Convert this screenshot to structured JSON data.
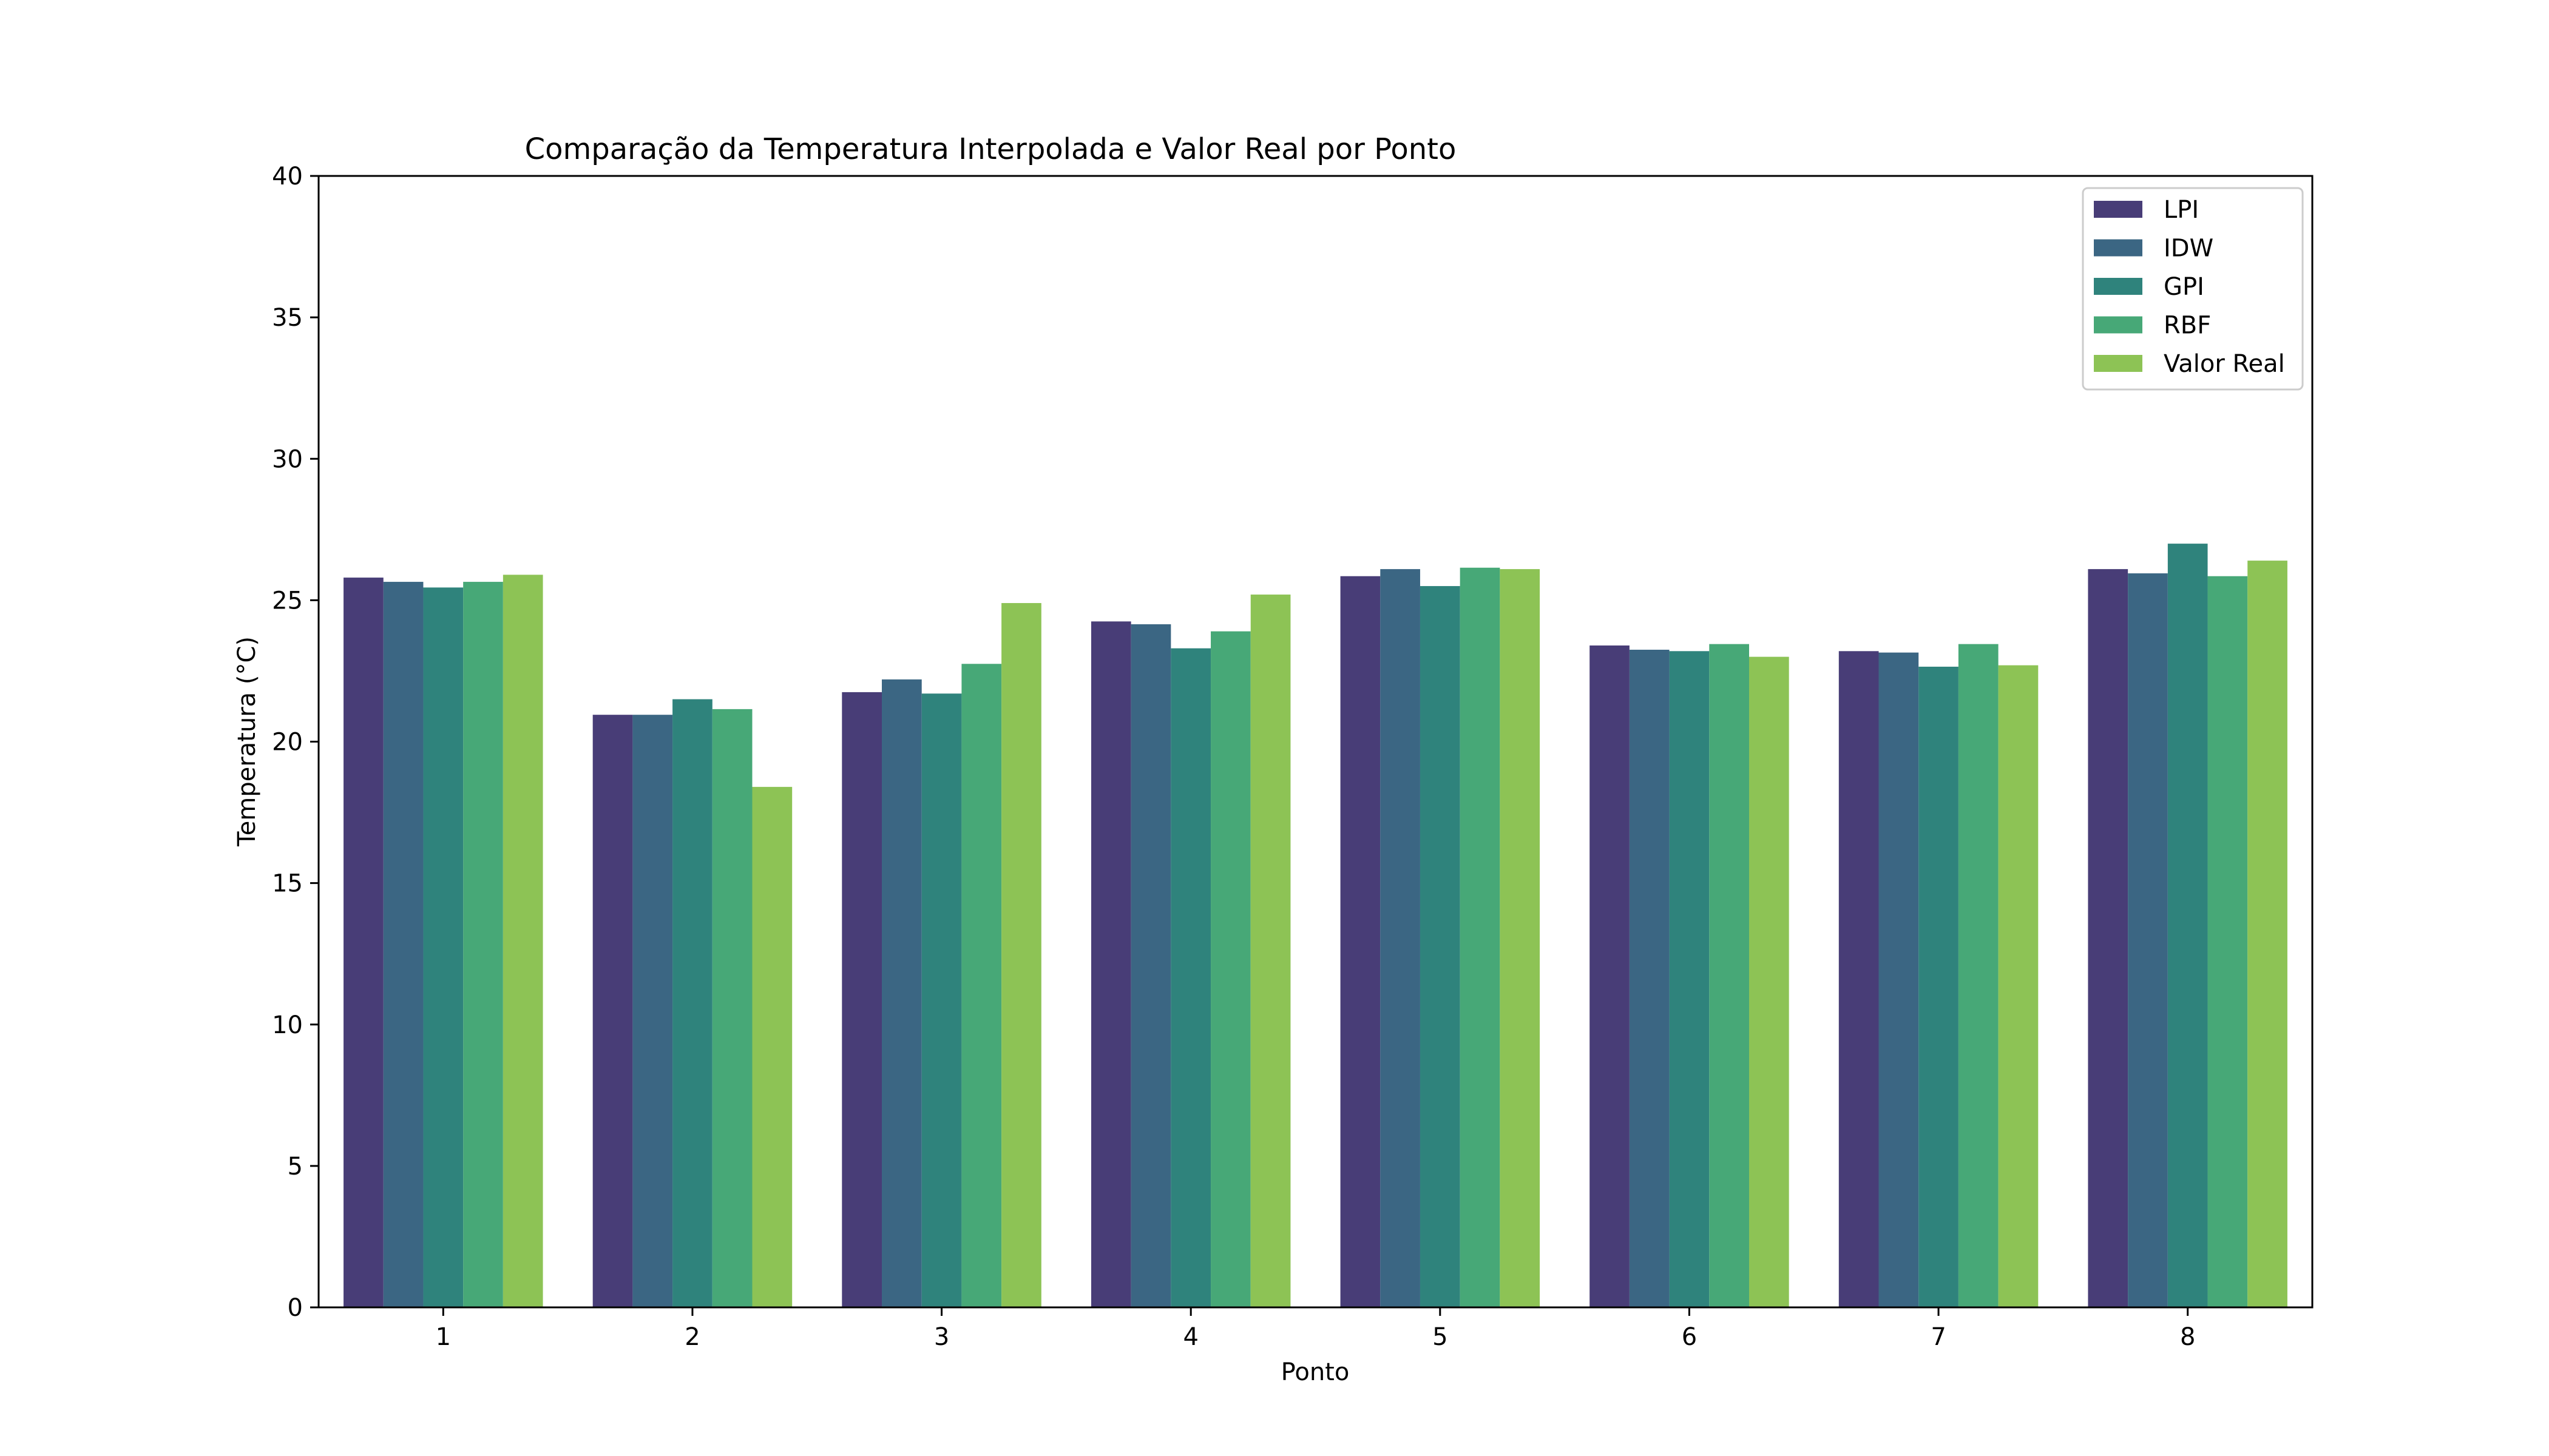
{
  "chart_data": {
    "type": "bar",
    "title": "Comparação da Temperatura Interpolada e Valor Real por Ponto",
    "xlabel": "Ponto",
    "ylabel": "Temperatura (°C)",
    "ylim": [
      0,
      40
    ],
    "yticks": [
      0,
      5,
      10,
      15,
      20,
      25,
      30,
      35,
      40
    ],
    "categories": [
      "1",
      "2",
      "3",
      "4",
      "5",
      "6",
      "7",
      "8"
    ],
    "grid": false,
    "legend_position": "top-right",
    "series": [
      {
        "name": "LPI",
        "color": "#483d77",
        "values": [
          25.8,
          20.95,
          21.75,
          24.25,
          25.85,
          23.4,
          23.2,
          26.1
        ]
      },
      {
        "name": "IDW",
        "color": "#3b6683",
        "values": [
          25.65,
          20.95,
          22.2,
          24.15,
          26.1,
          23.25,
          23.15,
          25.95
        ]
      },
      {
        "name": "GPI",
        "color": "#2f837c",
        "values": [
          25.45,
          21.5,
          21.7,
          23.3,
          25.5,
          23.2,
          22.65,
          27.0
        ]
      },
      {
        "name": "RBF",
        "color": "#47a877",
        "values": [
          25.65,
          21.15,
          22.75,
          23.9,
          26.15,
          23.45,
          23.45,
          25.85
        ]
      },
      {
        "name": "Valor Real",
        "color": "#8dc355",
        "values": [
          25.9,
          18.4,
          24.9,
          25.2,
          26.1,
          23.0,
          22.7,
          26.4
        ]
      }
    ]
  }
}
